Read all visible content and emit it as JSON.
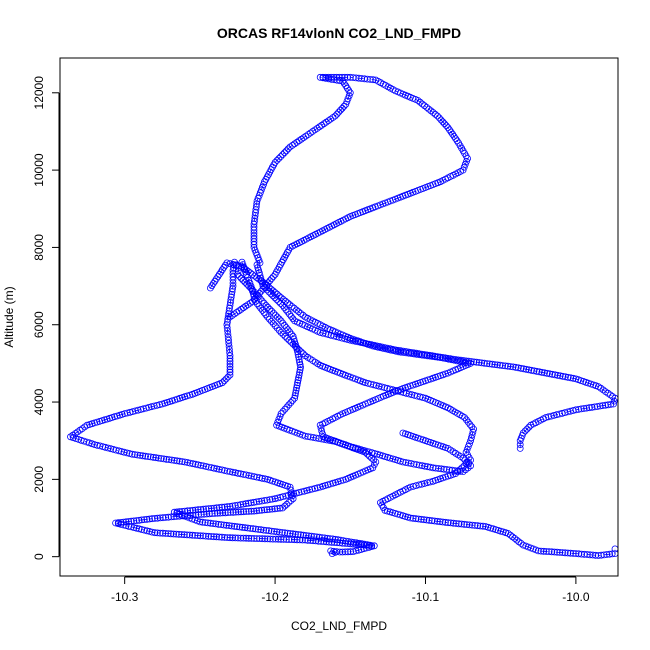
{
  "chart_data": {
    "type": "scatter",
    "title": "ORCAS RF14vlonN CO2_LND_FMPD",
    "xlabel": "CO2_LND_FMPD",
    "ylabel": "Altitude (m)",
    "xlim": [
      -10.343,
      -9.972
    ],
    "ylim": [
      -500,
      12900
    ],
    "x_ticks": [
      -10.3,
      -10.2,
      -10.1,
      -10.0
    ],
    "x_tick_labels": [
      "-10.3",
      "-10.2",
      "-10.1",
      "-10.0"
    ],
    "y_ticks": [
      0,
      2000,
      4000,
      6000,
      8000,
      10000,
      12000
    ],
    "y_tick_labels": [
      "0",
      "2000",
      "4000",
      "6000",
      "8000",
      "10000",
      "12000"
    ],
    "marker": "open-circle",
    "line_style": "dash-dot",
    "series_color": "#0000ff",
    "grid": false,
    "legend": "none",
    "series": [
      {
        "points": [
          [
            -10.162,
            80
          ],
          [
            -10.16,
            110
          ],
          [
            -10.163,
            150
          ],
          [
            -10.157,
            120
          ],
          [
            -10.148,
            130
          ],
          [
            -10.134,
            280
          ],
          [
            -10.18,
            430
          ],
          [
            -10.23,
            490
          ],
          [
            -10.28,
            620
          ],
          [
            -10.306,
            870
          ],
          [
            -10.28,
            990
          ],
          [
            -10.26,
            1060
          ],
          [
            -10.24,
            1120
          ],
          [
            -10.214,
            1180
          ],
          [
            -10.195,
            1260
          ],
          [
            -10.188,
            1500
          ],
          [
            -10.19,
            1800
          ],
          [
            -10.205,
            2000
          ],
          [
            -10.23,
            2200
          ],
          [
            -10.26,
            2450
          ],
          [
            -10.295,
            2650
          ],
          [
            -10.32,
            2900
          ],
          [
            -10.336,
            3100
          ],
          [
            -10.325,
            3400
          ],
          [
            -10.3,
            3700
          ],
          [
            -10.275,
            3950
          ],
          [
            -10.255,
            4200
          ],
          [
            -10.235,
            4500
          ],
          [
            -10.23,
            4700
          ],
          [
            -10.23,
            5200
          ],
          [
            -10.231,
            5600
          ],
          [
            -10.232,
            6000
          ],
          [
            -10.23,
            6500
          ],
          [
            -10.228,
            7000
          ],
          [
            -10.228,
            7400
          ],
          [
            -10.227,
            7620
          ],
          [
            -10.224,
            7480
          ],
          [
            -10.225,
            7300
          ],
          [
            -10.215,
            6900
          ],
          [
            -10.206,
            6500
          ],
          [
            -10.196,
            6100
          ],
          [
            -10.188,
            5700
          ],
          [
            -10.185,
            5300
          ],
          [
            -10.183,
            4900
          ],
          [
            -10.185,
            4500
          ],
          [
            -10.187,
            4100
          ],
          [
            -10.196,
            3700
          ],
          [
            -10.199,
            3400
          ],
          [
            -10.18,
            3120
          ],
          [
            -10.16,
            2980
          ],
          [
            -10.14,
            2700
          ],
          [
            -10.133,
            2450
          ],
          [
            -10.135,
            2300
          ],
          [
            -10.153,
            2000
          ],
          [
            -10.17,
            1800
          ],
          [
            -10.2,
            1500
          ],
          [
            -10.23,
            1300
          ],
          [
            -10.267,
            1150
          ],
          [
            -10.25,
            900
          ],
          [
            -10.22,
            750
          ],
          [
            -10.19,
            600
          ],
          [
            -10.16,
            450
          ],
          [
            -10.137,
            300
          ]
        ]
      },
      {
        "points": [
          [
            -10.222,
            7620
          ],
          [
            -10.219,
            7300
          ],
          [
            -10.216,
            7000
          ],
          [
            -10.213,
            6600
          ],
          [
            -10.205,
            6200
          ],
          [
            -10.196,
            5800
          ],
          [
            -10.188,
            5500
          ],
          [
            -10.18,
            5200
          ],
          [
            -10.17,
            4950
          ],
          [
            -10.155,
            4720
          ],
          [
            -10.14,
            4500
          ],
          [
            -10.12,
            4300
          ],
          [
            -10.1,
            4100
          ],
          [
            -10.085,
            3850
          ],
          [
            -10.074,
            3600
          ],
          [
            -10.068,
            3300
          ],
          [
            -10.07,
            3000
          ],
          [
            -10.073,
            2700
          ],
          [
            -10.07,
            2500
          ],
          [
            -10.08,
            2150
          ],
          [
            -10.095,
            1950
          ],
          [
            -10.11,
            1800
          ],
          [
            -10.12,
            1600
          ],
          [
            -10.13,
            1400
          ],
          [
            -10.127,
            1200
          ],
          [
            -10.11,
            1000
          ],
          [
            -10.085,
            880
          ],
          [
            -10.06,
            780
          ],
          [
            -10.045,
            600
          ],
          [
            -10.035,
            300
          ],
          [
            -10.025,
            150
          ],
          [
            -10.0,
            80
          ],
          [
            -9.985,
            30
          ],
          [
            -9.974,
            80
          ],
          [
            -9.974,
            200
          ]
        ]
      },
      {
        "points": [
          [
            -10.212,
            7550
          ],
          [
            -10.208,
            7000
          ],
          [
            -10.195,
            6500
          ],
          [
            -10.187,
            6100
          ],
          [
            -10.17,
            5800
          ],
          [
            -10.15,
            5600
          ],
          [
            -10.12,
            5350
          ],
          [
            -10.08,
            5100
          ],
          [
            -10.04,
            4900
          ],
          [
            -10.0,
            4600
          ],
          [
            -9.985,
            4400
          ],
          [
            -9.974,
            4100
          ],
          [
            -9.975,
            3950
          ],
          [
            -10.0,
            3800
          ],
          [
            -10.02,
            3600
          ],
          [
            -10.03,
            3400
          ],
          [
            -10.035,
            3200
          ],
          [
            -10.037,
            3000
          ],
          [
            -10.037,
            2800
          ]
        ]
      },
      {
        "points": [
          [
            -10.243,
            6950
          ],
          [
            -10.232,
            7600
          ],
          [
            -10.222,
            7500
          ],
          [
            -10.208,
            7100
          ],
          [
            -10.196,
            6700
          ],
          [
            -10.18,
            6200
          ],
          [
            -10.165,
            5900
          ],
          [
            -10.15,
            5650
          ],
          [
            -10.135,
            5450
          ],
          [
            -10.118,
            5300
          ],
          [
            -10.09,
            5150
          ],
          [
            -10.07,
            5000
          ],
          [
            -10.085,
            4750
          ],
          [
            -10.1,
            4550
          ],
          [
            -10.115,
            4350
          ],
          [
            -10.128,
            4150
          ],
          [
            -10.14,
            3950
          ],
          [
            -10.155,
            3700
          ],
          [
            -10.17,
            3400
          ],
          [
            -10.168,
            3100
          ],
          [
            -10.15,
            2850
          ],
          [
            -10.132,
            2650
          ],
          [
            -10.115,
            2450
          ],
          [
            -10.095,
            2300
          ],
          [
            -10.075,
            2200
          ],
          [
            -10.07,
            2350
          ],
          [
            -10.075,
            2550
          ],
          [
            -10.085,
            2800
          ],
          [
            -10.1,
            3000
          ],
          [
            -10.115,
            3200
          ]
        ]
      },
      {
        "points": [
          [
            -10.23,
            6200
          ],
          [
            -10.215,
            6600
          ],
          [
            -10.2,
            7300
          ],
          [
            -10.19,
            8000
          ],
          [
            -10.17,
            8400
          ],
          [
            -10.15,
            8800
          ],
          [
            -10.13,
            9100
          ],
          [
            -10.11,
            9400
          ],
          [
            -10.09,
            9700
          ],
          [
            -10.075,
            10000
          ],
          [
            -10.072,
            10300
          ],
          [
            -10.078,
            10700
          ],
          [
            -10.085,
            11100
          ],
          [
            -10.092,
            11400
          ],
          [
            -10.105,
            11800
          ],
          [
            -10.12,
            12050
          ],
          [
            -10.133,
            12330
          ],
          [
            -10.15,
            12400
          ],
          [
            -10.17,
            12400
          ],
          [
            -10.155,
            12300
          ],
          [
            -10.15,
            12000
          ],
          [
            -10.153,
            11700
          ],
          [
            -10.16,
            11400
          ],
          [
            -10.175,
            11000
          ],
          [
            -10.19,
            10600
          ],
          [
            -10.2,
            10200
          ],
          [
            -10.207,
            9700
          ],
          [
            -10.212,
            9200
          ],
          [
            -10.214,
            8600
          ],
          [
            -10.214,
            8000
          ],
          [
            -10.21,
            7600
          ]
        ]
      }
    ]
  }
}
